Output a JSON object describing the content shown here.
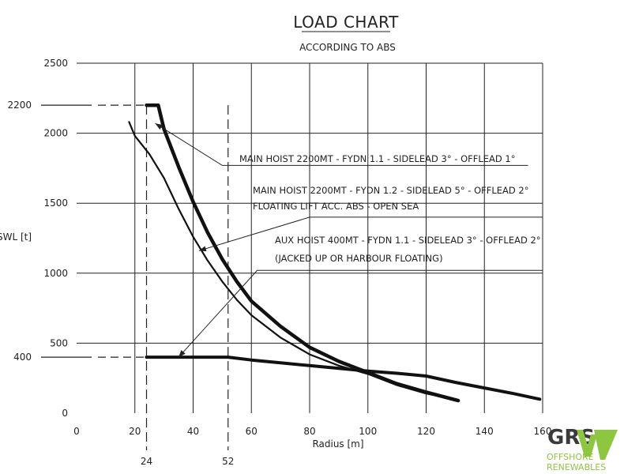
{
  "chart_data": {
    "type": "line",
    "title": "LOAD CHART",
    "subtitle": "ACCORDING TO ABS",
    "xlabel": "Radius [m]",
    "ylabel": "SWL [t]",
    "xlim": [
      0,
      160
    ],
    "ylim": [
      0,
      2500
    ],
    "xticks": [
      0,
      20,
      40,
      60,
      80,
      100,
      120,
      140,
      160
    ],
    "yticks": [
      0,
      500,
      1000,
      1500,
      2000,
      2500
    ],
    "xtick_labels": [
      "0",
      "20",
      "40",
      "60",
      "80",
      "100",
      "120",
      "140",
      "160"
    ],
    "ytick_labels": [
      "0",
      "500",
      "1000",
      "1500",
      "2000",
      "2500"
    ],
    "grid": true,
    "reference_lines": {
      "x": [
        {
          "value": 24,
          "label": "24"
        },
        {
          "value": 52,
          "label": "52"
        }
      ],
      "y": [
        {
          "value": 2200,
          "label": "2200"
        },
        {
          "value": 400,
          "label": "400"
        }
      ]
    },
    "series": [
      {
        "x": [
          24,
          28,
          30,
          35,
          40,
          45,
          50,
          55,
          60,
          70,
          80,
          90,
          100,
          110,
          120,
          131
        ],
        "y": [
          2200,
          2200,
          2030,
          1760,
          1510,
          1290,
          1100,
          940,
          800,
          620,
          470,
          370,
          290,
          210,
          150,
          90
        ]
      },
      {
        "x": [
          18,
          20,
          25,
          30,
          35,
          40,
          45,
          50,
          55,
          60,
          70,
          80,
          90,
          100,
          110,
          120,
          130
        ],
        "y": [
          2080,
          1980,
          1850,
          1680,
          1460,
          1260,
          1090,
          940,
          810,
          700,
          540,
          420,
          340,
          280,
          200,
          140,
          100
        ]
      },
      {
        "x": [
          24,
          52,
          60,
          70,
          80,
          90,
          100,
          110,
          120,
          130,
          140,
          150,
          159
        ],
        "y": [
          400,
          400,
          380,
          360,
          340,
          320,
          300,
          285,
          265,
          220,
          180,
          140,
          100
        ]
      }
    ],
    "annotations": [
      "MAIN HOIST 2200MT - FYDN 1.1 - SIDELEAD 3° - OFFLEAD 1°",
      "MAIN HOIST 2200MT - FYDN 1.2 - SIDELEAD 5° - OFFLEAD 2°",
      "FLOATING LIFT ACC. ABS - OPEN SEA",
      "AUX HOIST 400MT - FYDN 1.1 - SIDELEAD 3° - OFFLEAD 2°",
      "(JACKED UP OR HARBOUR FLOATING)"
    ]
  },
  "logo": {
    "mark": "GRS",
    "line1": "OFFSHORE",
    "line2": "RENEWABLES",
    "colors": {
      "dark": "#3a3a3a",
      "green": "#8dc63f"
    }
  },
  "colors": {
    "grid": "#222222",
    "curve": "#111111"
  }
}
